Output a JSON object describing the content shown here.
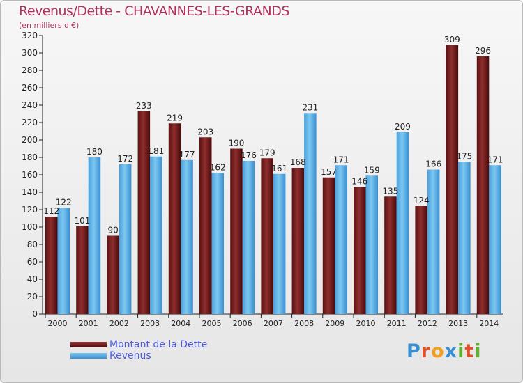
{
  "title": "Revenus/Dette - CHAVANNES-LES-GRANDS",
  "subtitle": "(en milliers d'€)",
  "legend": {
    "debt_label": "Montant de la Dette",
    "revenue_label": "Revenus"
  },
  "logo": {
    "letters": [
      "P",
      "r",
      "o",
      "x",
      "i",
      "t",
      "i"
    ],
    "colors": [
      "#3a8fd0",
      "#e0502a",
      "#f0a020",
      "#3a8fd0",
      "#60b030",
      "#e0502a",
      "#60b030"
    ]
  },
  "colors": {
    "debt_top": "#9b3535",
    "debt_bottom": "#4a0a0a",
    "revenue_top": "#78c6f0",
    "revenue_bottom": "#3a8fd0",
    "title": "#b03060",
    "legend_text": "#4a5be0"
  },
  "chart_data": {
    "type": "bar",
    "title": "Revenus/Dette - CHAVANNES-LES-GRANDS",
    "subtitle": "(en milliers d'€)",
    "xlabel": "",
    "ylabel": "",
    "ylim": [
      0,
      320
    ],
    "yticks": [
      0,
      20,
      40,
      60,
      80,
      100,
      120,
      140,
      160,
      180,
      200,
      220,
      240,
      260,
      280,
      300,
      320
    ],
    "grid": false,
    "legend_position": "bottom-left",
    "categories": [
      "2000",
      "2001",
      "2002",
      "2003",
      "2004",
      "2005",
      "2006",
      "2007",
      "2008",
      "2009",
      "2010",
      "2011",
      "2012",
      "2013",
      "2014"
    ],
    "series": [
      {
        "name": "Montant de la Dette",
        "values": [
          112,
          101,
          90,
          233,
          219,
          203,
          190,
          179,
          168,
          157,
          146,
          135,
          124,
          309,
          296
        ]
      },
      {
        "name": "Revenus",
        "values": [
          122,
          180,
          172,
          181,
          177,
          162,
          176,
          161,
          231,
          171,
          159,
          209,
          166,
          175,
          171
        ]
      }
    ]
  }
}
